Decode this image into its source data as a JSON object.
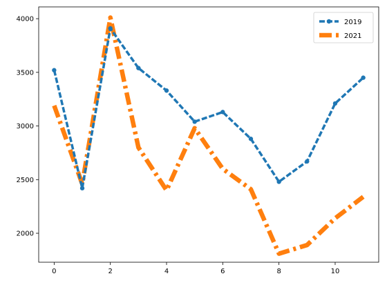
{
  "chart_data": {
    "type": "line",
    "title": "",
    "xlabel": "",
    "ylabel": "",
    "x": [
      0,
      1,
      2,
      3,
      4,
      5,
      6,
      7,
      8,
      9,
      10,
      11
    ],
    "xlim": [
      -0.55,
      11.55
    ],
    "ylim": [
      1730,
      4110
    ],
    "xticks": [
      0,
      2,
      4,
      6,
      8,
      10
    ],
    "yticks": [
      2000,
      2500,
      3000,
      3500,
      4000
    ],
    "grid": false,
    "legend_position": "top-right",
    "series": [
      {
        "name": "2019",
        "color": "#1f77b4",
        "line_style": "dashed",
        "marker": "circle",
        "values": [
          3520,
          2420,
          3910,
          3540,
          3330,
          3040,
          3130,
          2880,
          2480,
          2670,
          3210,
          3450
        ]
      },
      {
        "name": "2021",
        "color": "#ff7f0e",
        "line_style": "dash-dot",
        "marker": "none",
        "values": [
          3190,
          2460,
          4010,
          2800,
          2400,
          2980,
          2600,
          2410,
          1810,
          1890,
          2140,
          2340
        ]
      }
    ]
  }
}
